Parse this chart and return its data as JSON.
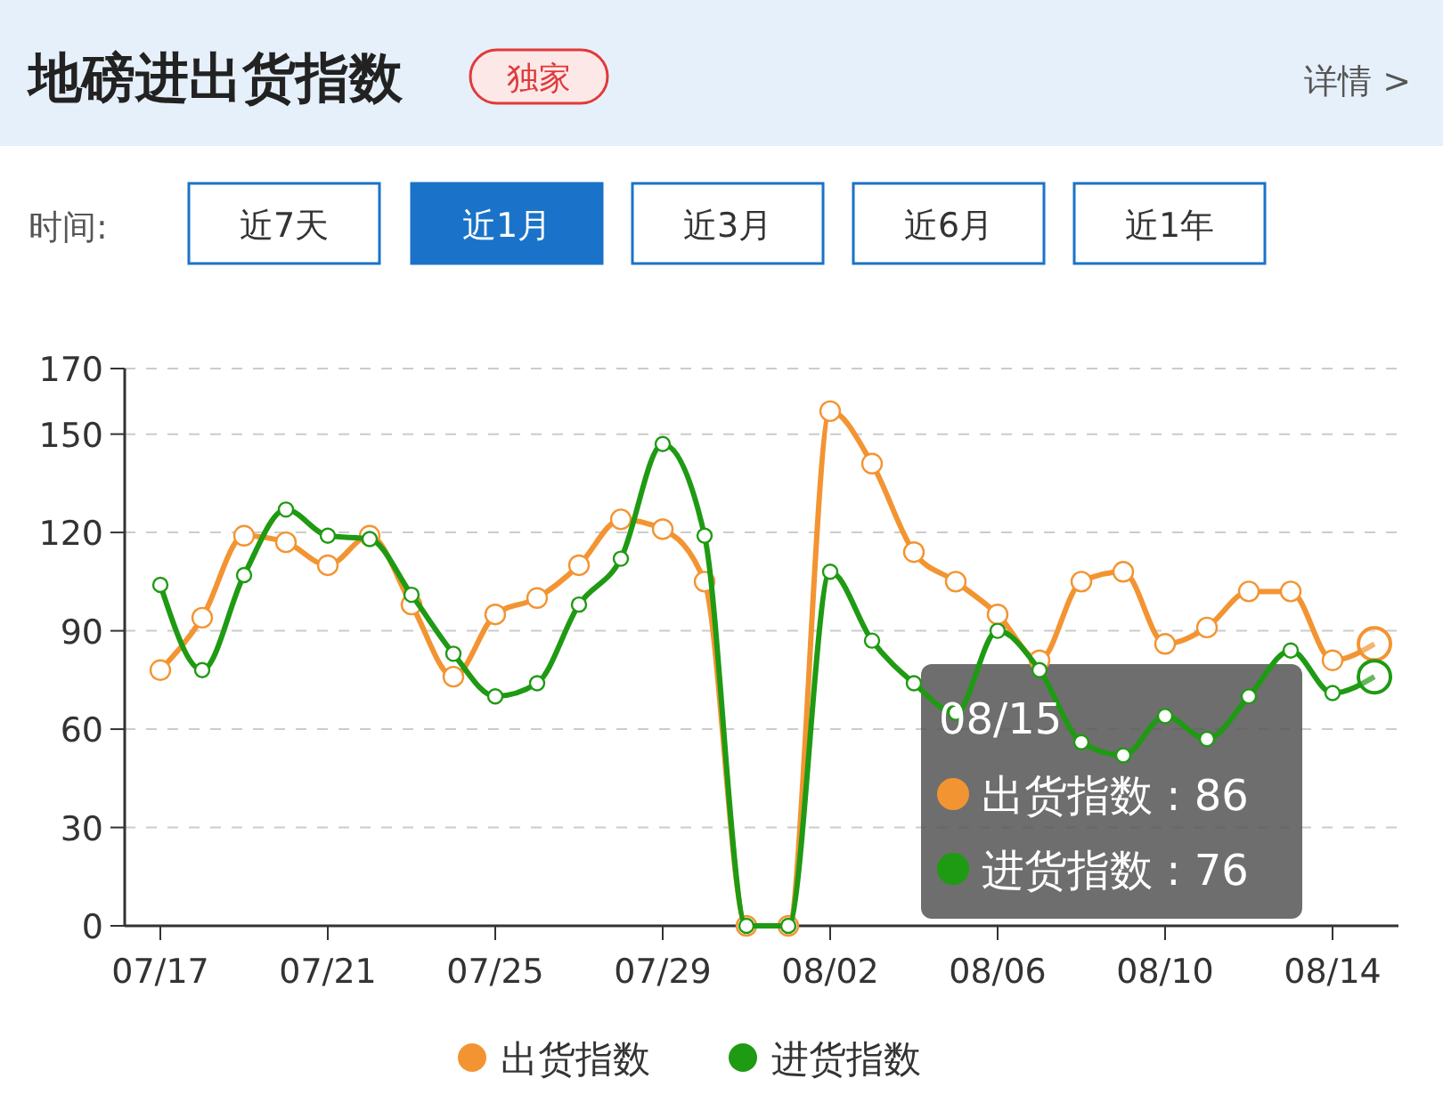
{
  "chart_data": {
    "type": "line",
    "title": "地磅进出货指数",
    "annotations": [
      "独家",
      "详情 >",
      "时间:",
      "近7天",
      "近1月",
      "近3月",
      "近6月",
      "近1年",
      "08/15",
      "出货指数 : 86",
      "进货指数 : 76"
    ],
    "categories": [
      "07/17",
      null,
      null,
      null,
      "07/21",
      null,
      null,
      null,
      "07/25",
      null,
      null,
      null,
      "07/29",
      null,
      null,
      null,
      "08/02",
      null,
      null,
      null,
      "08/06",
      null,
      null,
      null,
      "08/10",
      null,
      null,
      null,
      "08/14",
      null
    ],
    "series": [
      {
        "name": "出货指数",
        "color": "#f39432",
        "values": [
          78,
          94,
          119,
          117,
          110,
          119,
          98,
          76,
          95,
          100,
          110,
          124,
          121,
          105,
          0,
          0,
          157,
          141,
          114,
          105,
          95,
          81,
          105,
          108,
          86,
          91,
          102,
          102,
          81,
          86
        ]
      },
      {
        "name": "进货指数",
        "color": "#1f9a13",
        "values": [
          104,
          78,
          107,
          127,
          119,
          118,
          101,
          83,
          70,
          74,
          98,
          112,
          147,
          119,
          0,
          0,
          108,
          87,
          74,
          65,
          90,
          78,
          56,
          52,
          64,
          57,
          70,
          84,
          71,
          76
        ]
      }
    ],
    "ylim": [
      0,
      170
    ],
    "yticks": [
      0,
      30,
      60,
      90,
      120,
      150,
      170
    ],
    "grid": "y",
    "legend": "bottom",
    "marker": "circle",
    "line_style": "solid"
  }
}
